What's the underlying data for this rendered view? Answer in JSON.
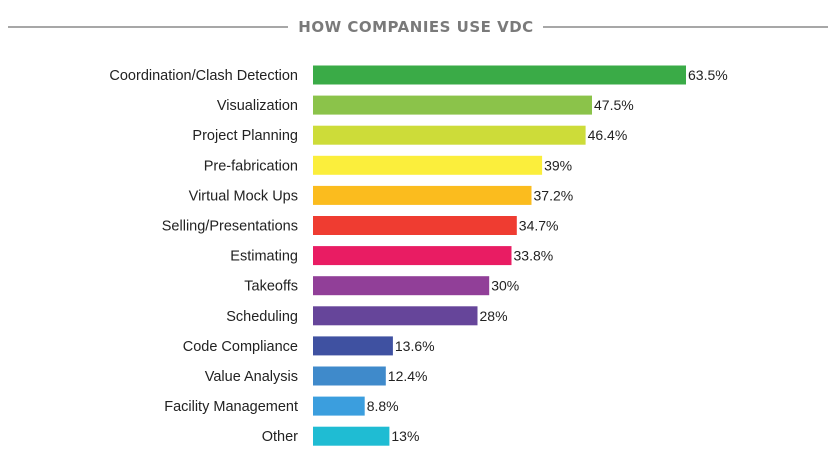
{
  "chart_data": {
    "type": "bar",
    "orientation": "horizontal",
    "title": "HOW COMPANIES USE VDC",
    "categories": [
      "Coordination/Clash Detection",
      "Visualization",
      "Project Planning",
      "Pre-fabrication",
      "Virtual Mock Ups",
      "Selling/Presentations",
      "Estimating",
      "Takeoffs",
      "Scheduling",
      "Code Compliance",
      "Value Analysis",
      "Facility Management",
      "Other"
    ],
    "values": [
      63.5,
      47.5,
      46.4,
      39,
      37.2,
      34.7,
      33.8,
      30,
      28,
      13.6,
      12.4,
      8.8,
      13
    ],
    "value_labels": [
      "63.5%",
      "47.5%",
      "46.4%",
      "39%",
      "37.2%",
      "34.7%",
      "33.8%",
      "30%",
      "28%",
      "13.6%",
      "12.4%",
      "8.8%",
      "13%"
    ],
    "colors": [
      "#3aab47",
      "#8bc34a",
      "#cddc39",
      "#fbee3c",
      "#fbbc1e",
      "#ef3c31",
      "#e91c63",
      "#913f98",
      "#66459a",
      "#3f51a1",
      "#3f8acb",
      "#3b9ede",
      "#1fbcd3"
    ],
    "xlim": [
      0,
      63.5
    ],
    "grid": false,
    "legend": "none",
    "xlabel": "",
    "ylabel": ""
  },
  "colors": {
    "title": "#7a7a7a",
    "rule": "#8a8a8a",
    "text": "#222222"
  }
}
